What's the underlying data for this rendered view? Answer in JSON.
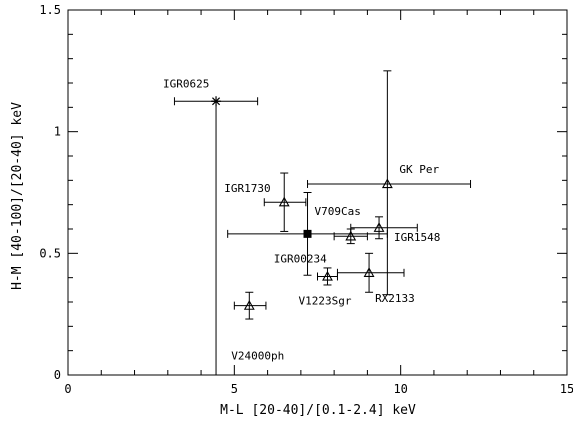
{
  "chart_data": {
    "type": "scatter",
    "title": "",
    "xlabel": "M-L [20-40]/[0.1-2.4] keV",
    "ylabel": "H-M [40-100]/[20-40] keV",
    "xlim": [
      0,
      15
    ],
    "ylim": [
      0,
      1.5
    ],
    "xticks": [
      {
        "value": 0,
        "label": "0"
      },
      {
        "value": 5,
        "label": "5"
      },
      {
        "value": 10,
        "label": "10"
      },
      {
        "value": 15,
        "label": "15"
      }
    ],
    "yticks": [
      {
        "value": 0,
        "label": "0"
      },
      {
        "value": 0.5,
        "label": "0.5"
      },
      {
        "value": 1,
        "label": "1"
      },
      {
        "value": 1.5,
        "label": "1.5"
      }
    ],
    "x_minor_step": 1,
    "y_minor_step": 0.1,
    "grid": false,
    "points": [
      {
        "name": "IGR0625",
        "marker": "asterisk",
        "x": 4.45,
        "y": 1.125,
        "xerr": [
          3.2,
          5.7
        ],
        "yerr": [
          0.0,
          1.125
        ]
      },
      {
        "name": "GK Per",
        "marker": "triangle",
        "x": 9.6,
        "y": 0.785,
        "xerr": [
          7.2,
          12.1
        ],
        "yerr": [
          0.33,
          1.25
        ]
      },
      {
        "name": "IGR1730",
        "marker": "triangle",
        "x": 6.5,
        "y": 0.71,
        "xerr": [
          5.9,
          7.15
        ],
        "yerr": [
          0.59,
          0.83
        ]
      },
      {
        "name": "V709Cas",
        "marker": "square",
        "x": 7.2,
        "y": 0.58,
        "xerr": [
          4.8,
          9.6
        ],
        "yerr": [
          0.41,
          0.75
        ]
      },
      {
        "name": "IGR1548",
        "marker": "triangle",
        "x": 9.35,
        "y": 0.605,
        "xerr": [
          8.5,
          10.5
        ],
        "yerr": [
          0.56,
          0.65
        ]
      },
      {
        "name": "IGR00234",
        "marker": "triangle",
        "x": 8.5,
        "y": 0.57,
        "xerr": [
          8.0,
          9.0
        ],
        "yerr": [
          0.54,
          0.6
        ]
      },
      {
        "name": "V1223Sgr",
        "marker": "triangle",
        "x": 7.8,
        "y": 0.405,
        "xerr": [
          7.5,
          8.1
        ],
        "yerr": [
          0.37,
          0.44
        ]
      },
      {
        "name": "RX2133",
        "marker": "triangle",
        "x": 9.05,
        "y": 0.42,
        "xerr": [
          8.1,
          10.1
        ],
        "yerr": [
          0.34,
          0.5
        ]
      },
      {
        "name": "V24000ph",
        "marker": "triangle",
        "x": 5.45,
        "y": 0.285,
        "xerr": [
          5.0,
          5.95
        ],
        "yerr": [
          0.23,
          0.34
        ]
      }
    ]
  }
}
